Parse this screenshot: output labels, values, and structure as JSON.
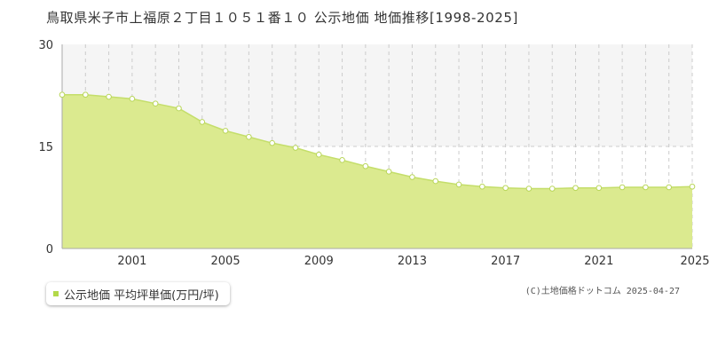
{
  "colors": {
    "area_fill": "#dbea8f",
    "area_upper_band": "#f5f5f5",
    "line": "#c4de6a",
    "point_fill": "#ffffff",
    "point_stroke": "#b9d65a",
    "grid_dashed": "#cccccc",
    "legend_marker": "#b3d94a"
  },
  "chart_data": {
    "type": "area",
    "title": "鳥取県米子市上福原２丁目１０５１番１０ 公示地価 地価推移[1998-2025]",
    "xlabel": "",
    "ylabel": "",
    "x_range": [
      1998,
      2025
    ],
    "ylim": [
      0,
      30
    ],
    "y_ticks": [
      0,
      15,
      30
    ],
    "x_tick_labels": [
      "2001",
      "2005",
      "2009",
      "2013",
      "2017",
      "2021",
      "2025"
    ],
    "grid": "vertical dashed per year, horizontal dashed at 15",
    "legend_placement": "bottom-left",
    "series": [
      {
        "name": "公示地価 平均坪単価(万円/坪)",
        "x": [
          1998,
          1999,
          2000,
          2001,
          2002,
          2003,
          2004,
          2005,
          2006,
          2007,
          2008,
          2009,
          2010,
          2011,
          2012,
          2013,
          2014,
          2015,
          2016,
          2017,
          2018,
          2019,
          2020,
          2021,
          2022,
          2023,
          2024,
          2025
        ],
        "values": [
          22.6,
          22.6,
          22.3,
          22.0,
          21.3,
          20.6,
          18.6,
          17.3,
          16.4,
          15.5,
          14.8,
          13.8,
          13.0,
          12.1,
          11.3,
          10.5,
          9.9,
          9.4,
          9.1,
          8.9,
          8.8,
          8.8,
          8.9,
          8.9,
          9.0,
          9.0,
          9.0,
          9.1
        ]
      }
    ]
  },
  "legend": {
    "label": "公示地価 平均坪単価(万円/坪)"
  },
  "copyright": "(C)土地価格ドットコム 2025-04-27"
}
